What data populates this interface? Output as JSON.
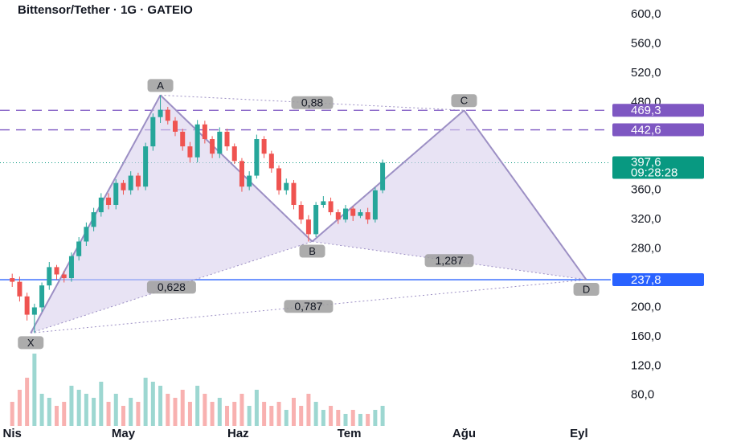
{
  "chart_data": {
    "type": "candlestick",
    "title": "Bittensor/Tether · 1G · GATEIO",
    "up_color": "#26a69a",
    "down_color": "#ef5350",
    "xlim": [
      -3.3,
      161.6
    ],
    "xticks": [
      {
        "value": 0,
        "label": "Nis"
      },
      {
        "value": 30,
        "label": "May"
      },
      {
        "value": 61,
        "label": "Haz"
      },
      {
        "value": 91,
        "label": "Tem"
      },
      {
        "value": 122,
        "label": "Ağu"
      },
      {
        "value": 153,
        "label": "Eyl"
      }
    ],
    "ylim": [
      38,
      620
    ],
    "yticks": [
      {
        "value": 600,
        "label": "600,0"
      },
      {
        "value": 560,
        "label": "560,0"
      },
      {
        "value": 520,
        "label": "520,0"
      },
      {
        "value": 480,
        "label": "480,0"
      },
      {
        "value": 360,
        "label": "360,0"
      },
      {
        "value": 320,
        "label": "320,0"
      },
      {
        "value": 280,
        "label": "280,0"
      },
      {
        "value": 200,
        "label": "200,0"
      },
      {
        "value": 160,
        "label": "160,0"
      },
      {
        "value": 120,
        "label": "120,0"
      },
      {
        "value": 80,
        "label": "80,0"
      }
    ],
    "x": [
      0,
      2,
      4,
      6,
      8,
      10,
      12,
      14,
      16,
      18,
      20,
      22,
      24,
      26,
      28,
      30,
      32,
      34,
      36,
      38,
      40,
      42,
      44,
      46,
      48,
      50,
      52,
      54,
      56,
      58,
      60,
      62,
      64,
      66,
      68,
      70,
      72,
      74,
      76,
      78,
      80,
      82,
      84,
      86,
      88,
      90,
      92,
      94,
      96,
      98,
      100
    ],
    "open": [
      240,
      235,
      215,
      190,
      200,
      230,
      255,
      245,
      240,
      270,
      290,
      310,
      330,
      350,
      340,
      370,
      360,
      380,
      365,
      420,
      460,
      470,
      455,
      440,
      420,
      405,
      450,
      430,
      410,
      440,
      420,
      400,
      365,
      380,
      430,
      410,
      390,
      360,
      370,
      340,
      320,
      300,
      340,
      345,
      330,
      320,
      335,
      325,
      330,
      320,
      360
    ],
    "high": [
      246,
      242,
      220,
      205,
      234,
      262,
      258,
      250,
      275,
      296,
      316,
      336,
      356,
      356,
      375,
      374,
      386,
      384,
      425,
      465,
      490,
      474,
      460,
      444,
      426,
      456,
      455,
      434,
      446,
      444,
      424,
      404,
      386,
      436,
      434,
      414,
      394,
      376,
      374,
      345,
      326,
      344,
      352,
      350,
      334,
      340,
      338,
      334,
      336,
      364,
      402
    ],
    "low": [
      228,
      208,
      182,
      165,
      194,
      224,
      238,
      234,
      235,
      264,
      284,
      304,
      324,
      334,
      334,
      354,
      354,
      360,
      360,
      414,
      452,
      450,
      434,
      414,
      398,
      398,
      424,
      404,
      404,
      414,
      396,
      358,
      360,
      376,
      404,
      384,
      354,
      354,
      334,
      314,
      290,
      296,
      336,
      326,
      314,
      316,
      318,
      322,
      314,
      316,
      356
    ],
    "close": [
      235,
      215,
      190,
      200,
      230,
      255,
      245,
      240,
      270,
      290,
      310,
      330,
      350,
      340,
      370,
      360,
      380,
      365,
      420,
      460,
      470,
      455,
      440,
      420,
      405,
      450,
      430,
      410,
      440,
      420,
      400,
      365,
      380,
      430,
      410,
      390,
      360,
      370,
      340,
      320,
      300,
      340,
      345,
      330,
      320,
      335,
      325,
      330,
      320,
      360,
      397.6
    ],
    "volume": [
      30,
      45,
      60,
      90,
      40,
      35,
      25,
      30,
      50,
      45,
      40,
      35,
      55,
      30,
      40,
      25,
      35,
      30,
      60,
      55,
      50,
      40,
      35,
      45,
      30,
      50,
      40,
      30,
      35,
      25,
      30,
      40,
      25,
      45,
      30,
      25,
      30,
      20,
      35,
      25,
      40,
      30,
      20,
      25,
      20,
      15,
      20,
      15,
      15,
      20,
      25
    ],
    "levels": [
      {
        "value": 469.3,
        "label": "469,3",
        "color": "#7e57c2",
        "style": "dashed"
      },
      {
        "value": 442.6,
        "label": "442,6",
        "color": "#7e57c2",
        "style": "dashed"
      },
      {
        "value": 237.8,
        "label": "237,8",
        "color": "#2962ff",
        "style": "solid"
      }
    ],
    "last_price": {
      "value": 397.6,
      "label": "397,6",
      "time": "09:28:28",
      "color": "#089981"
    },
    "pattern": {
      "color": "#9c8fc4",
      "fill": "#d9d0ec",
      "points": [
        {
          "label": "X",
          "x": 5,
          "y": 165
        },
        {
          "label": "A",
          "x": 40,
          "y": 490
        },
        {
          "label": "B",
          "x": 81,
          "y": 290
        },
        {
          "label": "C",
          "x": 122,
          "y": 469.3
        },
        {
          "label": "D",
          "x": 155,
          "y": 237.8
        }
      ],
      "ratios": [
        {
          "label": "0,628",
          "from": "X",
          "to": "B"
        },
        {
          "label": "0,88",
          "from": "A",
          "to": "C"
        },
        {
          "label": "1,287",
          "from": "B",
          "to": "D"
        },
        {
          "label": "0,787",
          "from": "X",
          "to": "D"
        }
      ]
    }
  }
}
